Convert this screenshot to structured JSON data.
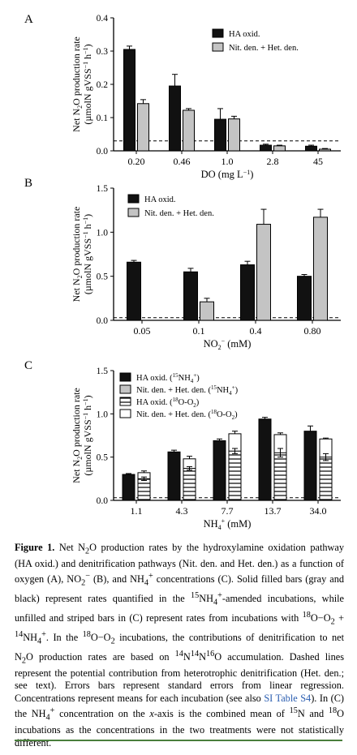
{
  "chart_data": [
    {
      "type": "bar",
      "panel_label": "A",
      "categories": [
        "0.20",
        "0.46",
        "1.0",
        "2.8",
        "45"
      ],
      "xlabel_html": "DO (mg L<tspan dy=\"-4\" font-size=\"8\">−1</tspan><tspan dy=\"4\">)</tspan>",
      "ylabel_line1_html": "Net N<tspan dy=\"3\" font-size=\"8\">2</tspan><tspan dy=\"-3\">O production rate</tspan>",
      "ylabel_line2_html": "(µmolN gVSS<tspan dy=\"-4\" font-size=\"8\">−1</tspan><tspan dy=\"4\"> h</tspan><tspan dy=\"-4\" font-size=\"8\">−1</tspan><tspan dy=\"4\">)</tspan>",
      "ylim": [
        0,
        0.4
      ],
      "yticks": [
        "0.0",
        "0.1",
        "0.2",
        "0.3",
        "0.4"
      ],
      "dashed_line": 0.03,
      "legend_position": "top-right",
      "series": [
        {
          "name": "HA oxid.",
          "fill": "#111111",
          "values": [
            0.305,
            0.195,
            0.095,
            0.017,
            0.014
          ],
          "errors": [
            0.01,
            0.035,
            0.032,
            0.003,
            0.003
          ]
        },
        {
          "name": "Nit. den. + Het. den.",
          "fill": "#c4c4c4",
          "values": [
            0.142,
            0.122,
            0.096,
            0.015,
            0.005
          ],
          "errors": [
            0.012,
            0.005,
            0.008,
            0.002,
            0.002
          ]
        }
      ]
    },
    {
      "type": "bar",
      "panel_label": "B",
      "categories": [
        "0.05",
        "0.1",
        "0.4",
        "0.80"
      ],
      "xlabel_html": "NO<tspan dy=\"3\" font-size=\"8\">2</tspan><tspan dy=\"-8\" font-size=\"8\">−</tspan><tspan dy=\"5\"> (mM)</tspan>",
      "ylabel_line1_html": "Net N<tspan dy=\"3\" font-size=\"8\">2</tspan><tspan dy=\"-3\">O production rate</tspan>",
      "ylabel_line2_html": "(µmolN gVSS<tspan dy=\"-4\" font-size=\"8\">−1</tspan><tspan dy=\"4\"> h</tspan><tspan dy=\"-4\" font-size=\"8\">−1</tspan><tspan dy=\"4\">)</tspan>",
      "ylim": [
        0,
        1.5
      ],
      "yticks": [
        "0.0",
        "0.5",
        "1.0",
        "1.5"
      ],
      "dashed_line": 0.03,
      "legend_position": "top-left",
      "series": [
        {
          "name": "HA oxid.",
          "fill": "#111111",
          "values": [
            0.66,
            0.55,
            0.63,
            0.5
          ],
          "errors": [
            0.02,
            0.04,
            0.04,
            0.02
          ]
        },
        {
          "name": "Nit. den. + Het. den.",
          "fill": "#c4c4c4",
          "values": [
            0,
            0.21,
            1.09,
            1.17
          ],
          "errors": [
            0,
            0.04,
            0.17,
            0.09
          ]
        }
      ]
    },
    {
      "type": "bar",
      "panel_label": "C",
      "categories": [
        "1.1",
        "4.3",
        "7.7",
        "13.7",
        "34.0"
      ],
      "xlabel_html": "NH<tspan dy=\"3\" font-size=\"8\">4</tspan><tspan dy=\"-8\" font-size=\"8\">+</tspan><tspan dy=\"5\"> (mM)</tspan>",
      "ylabel_line1_html": "Net N<tspan dy=\"3\" font-size=\"8\">2</tspan><tspan dy=\"-3\">O production rate</tspan>",
      "ylabel_line2_html": "(µmolN gVSS<tspan dy=\"-4\" font-size=\"8\">−1</tspan><tspan dy=\"4\"> h</tspan><tspan dy=\"-4\" font-size=\"8\">−1</tspan><tspan dy=\"4\">)</tspan>",
      "ylim": [
        0,
        1.5
      ],
      "yticks": [
        "0.0",
        "0.5",
        "1.0",
        "1.5"
      ],
      "dashed_line": 0.03,
      "legend_position": "top-left",
      "legend_html": [
        "HA oxid. (<tspan dy=\"-4\" font-size=\"7\">15</tspan><tspan dy=\"4\">NH</tspan><tspan dy=\"3\" font-size=\"7\">4</tspan><tspan dy=\"-7\" font-size=\"7\">+</tspan><tspan dy=\"4\">)</tspan>",
        "Nit. den. + Het. den. (<tspan dy=\"-4\" font-size=\"7\">15</tspan><tspan dy=\"4\">NH</tspan><tspan dy=\"3\" font-size=\"7\">4</tspan><tspan dy=\"-7\" font-size=\"7\">+</tspan><tspan dy=\"4\">)</tspan>",
        "HA oxid. (<tspan dy=\"-4\" font-size=\"7\">18</tspan><tspan dy=\"4\">O-O</tspan><tspan dy=\"3\" font-size=\"7\">2</tspan><tspan dy=\"-3\">)</tspan>",
        "Nit. den. + Het. den. (<tspan dy=\"-4\" font-size=\"7\">18</tspan><tspan dy=\"4\">O-O</tspan><tspan dy=\"3\" font-size=\"7\">2</tspan><tspan dy=\"-3\">)</tspan>"
      ],
      "series": [
        {
          "name": "HA oxid. (15NH4+)",
          "fill": "#111111",
          "values": [
            0.3,
            0.56,
            0.69,
            0.94,
            0.8
          ],
          "errors": [
            0.01,
            0.02,
            0.02,
            0.02,
            0.06
          ]
        },
        {
          "name": "Nit. den. + Het. den. (15NH4+)",
          "fill": "#ffffff",
          "values": [
            0.32,
            0.48,
            0.77,
            0.76,
            0.71
          ],
          "errors": [
            0.02,
            0.03,
            0.03,
            0.02,
            0.01
          ]
        }
      ],
      "stack_overlay": [
        {
          "name": "HA oxid. (18O-O2)",
          "pattern": "hstripes",
          "on_series": 1,
          "values": [
            0.25,
            0.37,
            0.57,
            0.55,
            0.5
          ],
          "errors": [
            0.02,
            0.02,
            0.03,
            0.05,
            0.04
          ]
        }
      ],
      "segments_on_series0": [
        0.81,
        0.8
      ]
    }
  ],
  "caption": {
    "label": "Figure 1.",
    "html": " Net N<sub>2</sub>O production rates by the hydroxylamine oxidation pathway (HA oxid.) and denitrification pathways (Nit. den. and Het. den.) as a function of oxygen (A), NO<sub>2</sub><sup>−</sup> (B), and NH<sub>4</sub><sup>+</sup> concentrations (C). Solid filled bars (gray and black) represent rates quantified in the <sup>15</sup>NH<sub>4</sub><sup>+</sup>-amended incubations, while unfilled and striped bars in (C) represent rates from incubations with <sup>18</sup>O−O<sub>2</sub> + <sup>14</sup>NH<sub>4</sub><sup>+</sup>. In the <sup>18</sup>O−O<sub>2</sub> incubations, the contributions of denitrification to net N<sub>2</sub>O production rates are based on <sup>14</sup>N<sup>14</sup>N<sup>16</sup>O accumulation. Dashed lines represent the potential contribution from heterotrophic denitrification (Het. den.; see text). Errors bars represent standard errors from linear regression. Concentrations represent means for each incubation (see also <span class=\"link\">SI Table S4</span>). In (C) the NH<sub>4</sub><sup>+</sup> concentration on the <i>x</i>-axis is the combined mean of <sup>15</sup>N and <sup>18</sup>O incubations as the concentrations in the two treatments were not statistically different."
  }
}
